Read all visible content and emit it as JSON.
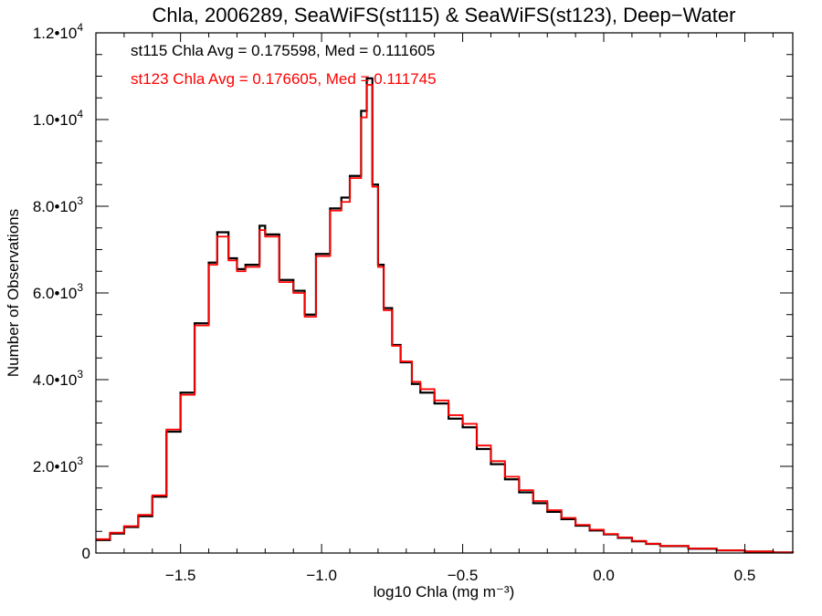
{
  "chart_data": {
    "type": "line",
    "title": "Chla, 2006289, SeaWiFS(st115) & SeaWiFS(st123), Deep−Water",
    "xlabel": "log10 Chla (mg m⁻³)",
    "ylabel": "Number of Observations",
    "xlim": [
      -1.8,
      0.67
    ],
    "ylim": [
      0,
      12000
    ],
    "grid": false,
    "x_ticks": [
      {
        "value": -1.5,
        "label": "−1.5"
      },
      {
        "value": -1.0,
        "label": "−1.0"
      },
      {
        "value": -0.5,
        "label": "−0.5"
      },
      {
        "value": 0.0,
        "label": "0.0"
      },
      {
        "value": 0.5,
        "label": "0.5"
      }
    ],
    "y_ticks": [
      {
        "value": 0,
        "mantissa": "0",
        "exponent": ""
      },
      {
        "value": 2000,
        "mantissa": "2.0•10",
        "exponent": "3"
      },
      {
        "value": 4000,
        "mantissa": "4.0•10",
        "exponent": "3"
      },
      {
        "value": 6000,
        "mantissa": "6.0•10",
        "exponent": "3"
      },
      {
        "value": 8000,
        "mantissa": "8.0•10",
        "exponent": "3"
      },
      {
        "value": 10000,
        "mantissa": "1.0•10",
        "exponent": "4"
      },
      {
        "value": 12000,
        "mantissa": "1.2•10",
        "exponent": "4"
      }
    ],
    "annotations": [
      {
        "text": "st115 Chla Avg = 0.175598, Med = 0.111605",
        "color": "#000000"
      },
      {
        "text": "st123 Chla Avg = 0.176605, Med = 0.111745",
        "color": "#ff0000"
      }
    ],
    "series": [
      {
        "color": "#000000",
        "x": [
          -1.8,
          -1.75,
          -1.7,
          -1.65,
          -1.6,
          -1.55,
          -1.5,
          -1.45,
          -1.4,
          -1.37,
          -1.33,
          -1.3,
          -1.27,
          -1.22,
          -1.2,
          -1.15,
          -1.1,
          -1.06,
          -1.02,
          -0.97,
          -0.93,
          -0.9,
          -0.86,
          -0.84,
          -0.82,
          -0.8,
          -0.78,
          -0.75,
          -0.72,
          -0.68,
          -0.65,
          -0.6,
          -0.55,
          -0.5,
          -0.45,
          -0.4,
          -0.35,
          -0.3,
          -0.25,
          -0.2,
          -0.15,
          -0.1,
          -0.05,
          0.0,
          0.05,
          0.1,
          0.15,
          0.2,
          0.3,
          0.4,
          0.5,
          0.6,
          0.67
        ],
        "values": [
          300,
          450,
          600,
          850,
          1300,
          2800,
          3700,
          5300,
          6700,
          7400,
          6800,
          6550,
          6650,
          7550,
          7350,
          6300,
          6050,
          5500,
          6900,
          7950,
          8200,
          8700,
          10200,
          10950,
          8500,
          6650,
          5650,
          4800,
          4400,
          3900,
          3700,
          3450,
          3100,
          2900,
          2400,
          2050,
          1700,
          1400,
          1150,
          950,
          780,
          630,
          520,
          430,
          350,
          270,
          210,
          160,
          100,
          60,
          35,
          15,
          5
        ]
      },
      {
        "color": "#ff0000",
        "x": [
          -1.8,
          -1.75,
          -1.7,
          -1.65,
          -1.6,
          -1.55,
          -1.5,
          -1.45,
          -1.4,
          -1.37,
          -1.33,
          -1.3,
          -1.27,
          -1.22,
          -1.2,
          -1.15,
          -1.1,
          -1.06,
          -1.02,
          -0.97,
          -0.93,
          -0.9,
          -0.86,
          -0.84,
          -0.82,
          -0.8,
          -0.78,
          -0.75,
          -0.72,
          -0.68,
          -0.65,
          -0.6,
          -0.55,
          -0.5,
          -0.45,
          -0.4,
          -0.35,
          -0.3,
          -0.25,
          -0.2,
          -0.15,
          -0.1,
          -0.05,
          0.0,
          0.05,
          0.1,
          0.15,
          0.2,
          0.3,
          0.4,
          0.5,
          0.6,
          0.67
        ],
        "values": [
          320,
          470,
          620,
          880,
          1330,
          2850,
          3650,
          5250,
          6650,
          7300,
          6750,
          6500,
          6600,
          7450,
          7300,
          6250,
          6000,
          5450,
          6850,
          7900,
          8100,
          8650,
          10050,
          10800,
          8450,
          6600,
          5600,
          4780,
          4420,
          3950,
          3780,
          3520,
          3180,
          2980,
          2480,
          2120,
          1760,
          1450,
          1200,
          990,
          810,
          650,
          540,
          440,
          360,
          280,
          215,
          165,
          105,
          62,
          36,
          16,
          5
        ]
      }
    ]
  }
}
